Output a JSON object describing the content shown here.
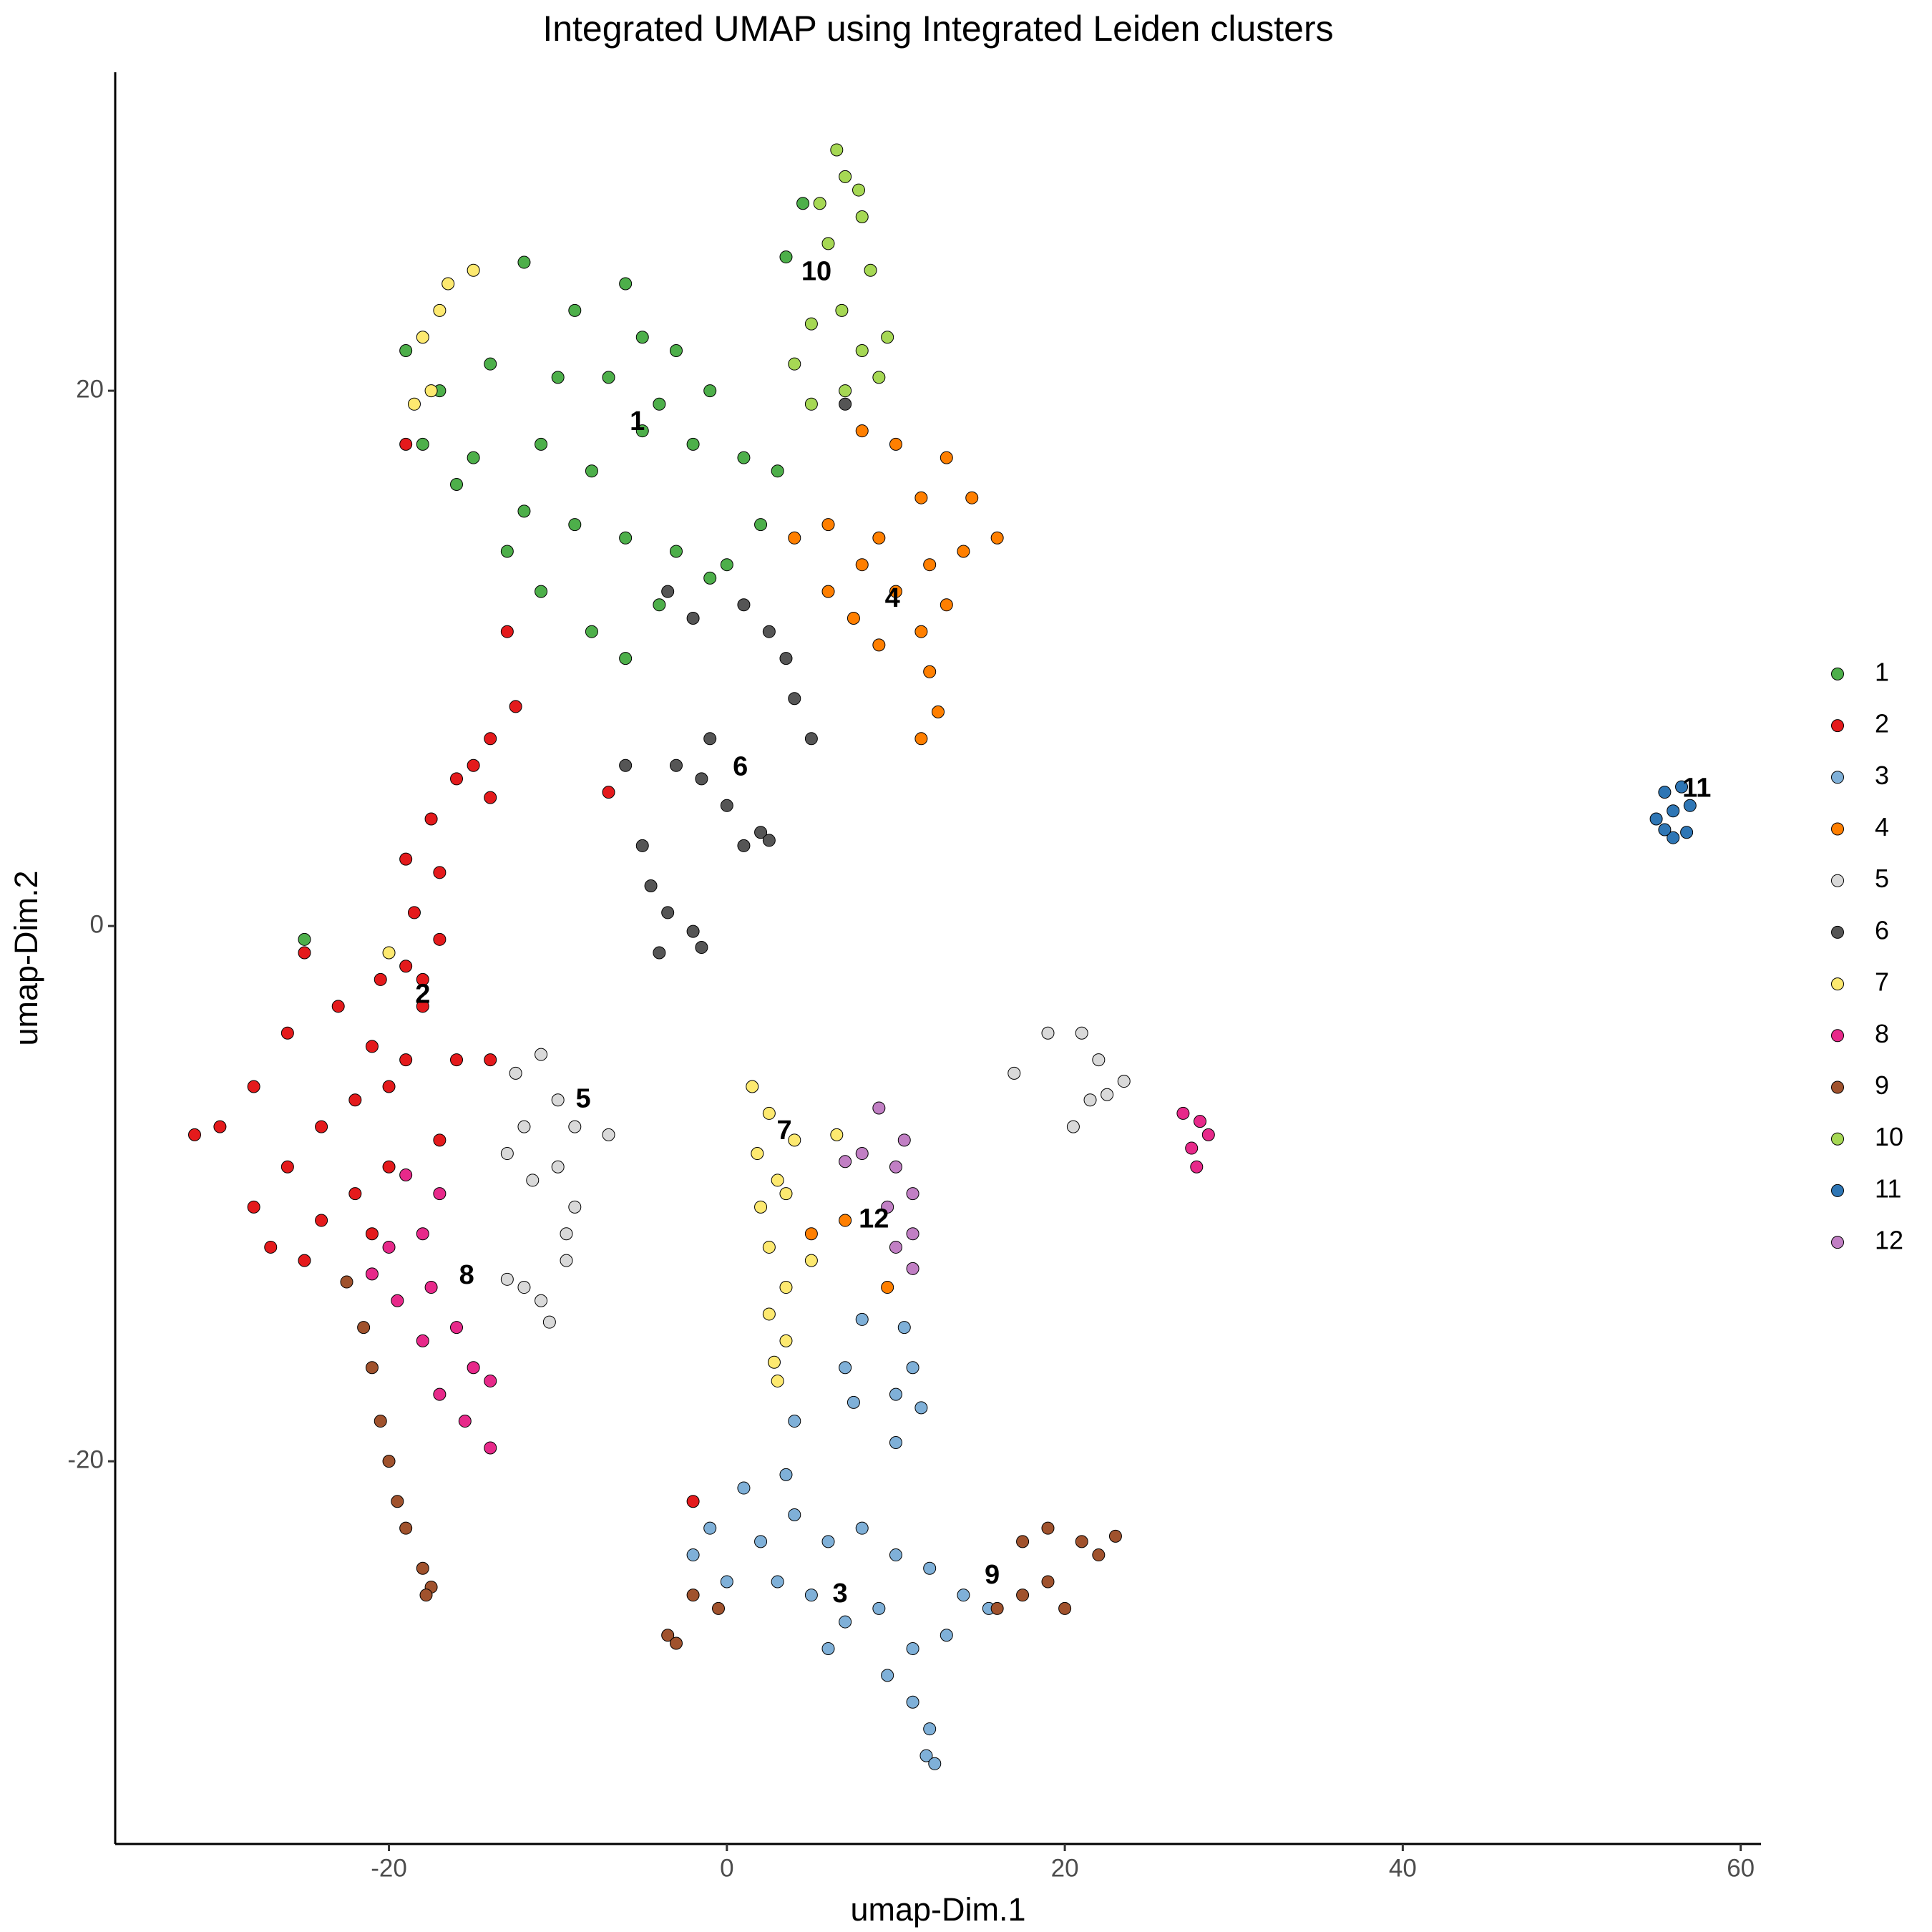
{
  "chart_data": {
    "type": "scatter",
    "title": "Integrated UMAP using Integrated Leiden clusters",
    "xlabel": "umap-Dim.1",
    "ylabel": "umap-Dim.2",
    "xlim": [
      -36.2,
      61.2
    ],
    "ylim": [
      -34.3,
      31.9
    ],
    "xticks": [
      -20,
      0,
      20,
      40,
      60
    ],
    "yticks": [
      -20,
      0,
      20
    ],
    "grid": false,
    "legend": "right",
    "series": [
      {
        "name": "1",
        "color": "#4daf4a",
        "x": [
          -12,
          -9,
          -5,
          -3,
          -1,
          -7,
          -14,
          -17,
          -18,
          -15,
          -11,
          -8,
          -5,
          -2,
          1,
          3,
          -12,
          -9,
          -6,
          -3,
          0,
          2,
          -11,
          -8,
          -6,
          -4,
          -13,
          -16,
          -19,
          -10,
          -6,
          -4,
          3.5,
          4.5,
          -1,
          -25
        ],
        "y": [
          24.8,
          23,
          22,
          21.5,
          20,
          20.5,
          21,
          20,
          18,
          17.5,
          18,
          17,
          18.5,
          18,
          17.5,
          17,
          15.5,
          15,
          14.5,
          14,
          13.5,
          15,
          12.5,
          11,
          10,
          12,
          14,
          16.5,
          21.5,
          20.5,
          24,
          19.5,
          25,
          27,
          13,
          -0.5
        ]
      },
      {
        "name": "2",
        "color": "#e41a1c",
        "x": [
          -12.5,
          -14,
          -15,
          -14,
          -16,
          -17.5,
          -19,
          -17,
          -18.5,
          -17,
          -19,
          -20.5,
          -18,
          -21,
          -19,
          -16,
          -14,
          -23,
          -25,
          -26,
          -28,
          -30,
          -31.5,
          -22,
          -24,
          -20,
          -26,
          -28,
          -27,
          -24,
          -22,
          -20,
          -25,
          -21,
          -17,
          -18,
          -19,
          -13,
          -7,
          -2
        ],
        "y": [
          8.2,
          7,
          6,
          4.8,
          5.5,
          4,
          2.5,
          2,
          0.5,
          -0.5,
          -1.5,
          -2,
          -3,
          -4.5,
          -5,
          -5,
          -5,
          -3,
          -1,
          -4,
          -6,
          -7.5,
          -7.8,
          -6.5,
          -7.5,
          -6,
          -9,
          -10.5,
          -12,
          -11,
          -10,
          -9,
          -12.5,
          -11.5,
          -8,
          -2,
          18,
          11,
          5,
          -21.5
        ]
      },
      {
        "name": "3",
        "color": "#7fb0d8",
        "x": [
          8,
          10.5,
          7,
          11,
          10,
          11.5,
          7.5,
          10,
          4,
          3.5,
          1,
          -1,
          -2,
          0,
          2,
          4,
          6,
          8,
          10,
          12,
          14,
          15.5,
          13,
          11,
          9,
          7,
          5,
          3,
          9.5,
          11,
          12,
          11.8,
          12.3,
          6
        ],
        "y": [
          -14.7,
          -15,
          -16.5,
          -16.5,
          -17.5,
          -18,
          -17.8,
          -19.3,
          -18.5,
          -20.5,
          -21,
          -22.5,
          -23.5,
          -24.5,
          -23,
          -22,
          -23,
          -22.5,
          -23.5,
          -24,
          -25,
          -25.5,
          -26.5,
          -27,
          -25.5,
          -26,
          -25,
          -24.5,
          -28,
          -29,
          -30,
          -31,
          -31.3,
          -27
        ]
      },
      {
        "name": "4",
        "color": "#ff7f00",
        "x": [
          8,
          10,
          13,
          14.5,
          11.5,
          16,
          14,
          12,
          9,
          6,
          4,
          8,
          10,
          13,
          11.5,
          9,
          12,
          12.5,
          11.5,
          7.5,
          6,
          5,
          7,
          9.5
        ],
        "y": [
          18.5,
          18,
          17.5,
          16,
          16,
          14.5,
          14,
          13.5,
          14.5,
          15,
          14.5,
          13.5,
          12.5,
          12,
          11,
          10.5,
          9.5,
          8,
          7,
          11.5,
          12.5,
          -11.5,
          -11,
          -13.5
        ]
      },
      {
        "name": "5",
        "color": "#d9d9d9",
        "x": [
          -11,
          -12.5,
          -10,
          -12,
          -9,
          -7,
          -13,
          -10,
          -11.5,
          -9,
          -9.5,
          -9.5,
          -12,
          -11,
          -13,
          -10.5,
          17,
          19,
          21,
          22,
          23.5,
          21.5,
          20.5,
          22.5
        ],
        "y": [
          -4.8,
          -5.5,
          -6.5,
          -7.5,
          -7.5,
          -7.8,
          -8.5,
          -9,
          -9.5,
          -10.5,
          -11.5,
          -12.5,
          -13.5,
          -14,
          -13.2,
          -14.8,
          -5.5,
          -4,
          -4,
          -5,
          -5.8,
          -6.5,
          -7.5,
          -6.3
        ]
      },
      {
        "name": "6",
        "color": "#555555",
        "x": [
          -3.5,
          -2,
          1,
          2.5,
          3.5,
          4,
          5,
          -1,
          -1.5,
          0,
          2,
          -3,
          -5,
          -4.5,
          -3.5,
          -2,
          -1.5,
          -4,
          1,
          2.5,
          -6,
          7
        ],
        "y": [
          12.5,
          11.5,
          12,
          11,
          10,
          8.5,
          7,
          7,
          5.5,
          4.5,
          3.5,
          6,
          3,
          1.5,
          0.5,
          -0.2,
          -0.8,
          -1,
          3,
          3.2,
          6,
          19.5
        ]
      },
      {
        "name": "7",
        "color": "#fde970",
        "x": [
          1.5,
          2.5,
          4,
          6.5,
          1.8,
          3,
          2,
          3.5,
          2.5,
          3.5,
          5,
          2.5,
          3.5,
          3,
          2.8,
          -15,
          -16.5,
          -17,
          -18,
          -17.5,
          -18.5,
          -20
        ],
        "y": [
          -6,
          -7,
          -8,
          -7.8,
          -8.5,
          -9.5,
          -10.5,
          -10,
          -12,
          -13.5,
          -12.5,
          -14.5,
          -15.5,
          -17,
          -16.3,
          24.5,
          24,
          23,
          22,
          20,
          19.5,
          -1
        ]
      },
      {
        "name": "8",
        "color": "#e7298a",
        "x": [
          -19,
          -17,
          -18,
          -20,
          -21,
          -19.5,
          -17.5,
          -18,
          -16,
          -15,
          -14,
          -15.5,
          -14,
          -17,
          27,
          28,
          28.5,
          27.5,
          27.8
        ],
        "y": [
          -9.3,
          -10,
          -11.5,
          -12,
          -13,
          -14,
          -13.5,
          -15.5,
          -15,
          -16.5,
          -17,
          -18.5,
          -19.5,
          -17.5,
          -7,
          -7.3,
          -7.8,
          -8.3,
          -9
        ]
      },
      {
        "name": "9",
        "color": "#a0522d",
        "x": [
          -22.5,
          -21.5,
          -21,
          -20.5,
          -20,
          -19.5,
          -19,
          -18,
          -17.5,
          -17.8,
          16,
          17.5,
          19,
          21,
          23,
          22,
          19,
          17.5,
          20,
          -3.5,
          -2,
          -0.5,
          -3
        ],
        "y": [
          -13.3,
          -15,
          -16.5,
          -18.5,
          -20,
          -21.5,
          -22.5,
          -24,
          -24.7,
          -25,
          -25.5,
          -23,
          -22.5,
          -23,
          -22.8,
          -23.5,
          -24.5,
          -25,
          -25.5,
          -26.5,
          -25,
          -25.5,
          -26.8
        ]
      },
      {
        "name": "10",
        "color": "#a6d854",
        "x": [
          6.5,
          7,
          5.5,
          8,
          6,
          8.5,
          6.8,
          5,
          8,
          9,
          7,
          5,
          4,
          9.5,
          7.8
        ],
        "y": [
          29,
          28,
          27,
          26.5,
          25.5,
          24.5,
          23,
          22.5,
          21.5,
          20.5,
          20,
          19.5,
          21,
          22,
          27.5
        ]
      },
      {
        "name": "11",
        "color": "#2e76b5",
        "x": [
          55.5,
          56.5,
          56,
          55,
          57,
          56,
          56.8,
          55.5
        ],
        "y": [
          5,
          5.2,
          4.3,
          4,
          4.5,
          3.3,
          3.5,
          3.6
        ]
      },
      {
        "name": "12",
        "color": "#c17fc4",
        "x": [
          9,
          10.5,
          8,
          10,
          11,
          9.5,
          11,
          10,
          11,
          7
        ],
        "y": [
          -6.8,
          -8,
          -8.5,
          -9,
          -10,
          -10.5,
          -11.5,
          -12,
          -12.8,
          -8.8
        ]
      }
    ],
    "annotations": [
      {
        "text": "1",
        "x": -5.3,
        "y": 18.8
      },
      {
        "text": "10",
        "x": 5.3,
        "y": 24.4
      },
      {
        "text": "4",
        "x": 9.8,
        "y": 12.2
      },
      {
        "text": "6",
        "x": 0.8,
        "y": 5.9
      },
      {
        "text": "11",
        "x": 57.4,
        "y": 5.1
      },
      {
        "text": "2",
        "x": -18,
        "y": -2.6
      },
      {
        "text": "5",
        "x": -8.5,
        "y": -6.5
      },
      {
        "text": "7",
        "x": 3.4,
        "y": -7.7
      },
      {
        "text": "12",
        "x": 8.7,
        "y": -11
      },
      {
        "text": "8",
        "x": -15.4,
        "y": -13.1
      },
      {
        "text": "9",
        "x": 15.7,
        "y": -24.3
      },
      {
        "text": "3",
        "x": 6.7,
        "y": -25
      }
    ]
  }
}
